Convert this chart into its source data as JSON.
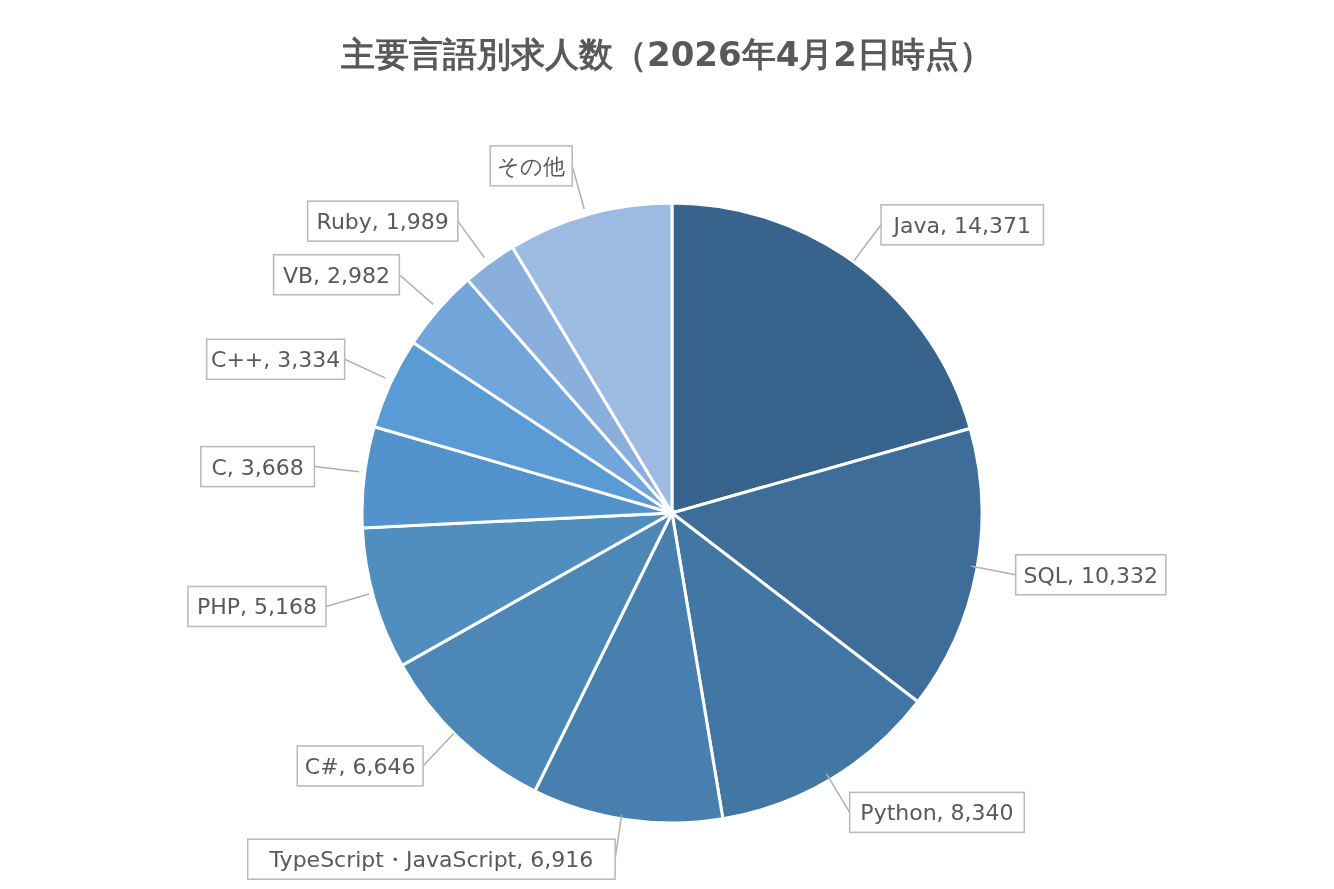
{
  "chart_data": {
    "type": "pie",
    "title": "主要言語別求人数（2026年4月2日時点）",
    "categories": [
      "Java",
      "SQL",
      "Python",
      "TypeScript・JavaScript",
      "C#",
      "PHP",
      "C",
      "C++",
      "VB",
      "Ruby",
      "その他"
    ],
    "values": [
      14371,
      10332,
      8340,
      6916,
      6646,
      5168,
      3668,
      3334,
      2982,
      1989,
      6000
    ],
    "value_labels": [
      "14,371",
      "10,332",
      "8,340",
      "6,916",
      "6,646",
      "5,168",
      "3,668",
      "3,334",
      "2,982",
      "1,989",
      null
    ],
    "colors": [
      "#38638c",
      "#3d6d98",
      "#4276a3",
      "#4780ae",
      "#4c87b6",
      "#508ec0",
      "#5393cb",
      "#5b9bd5",
      "#72a6da",
      "#8aafdd",
      "#9dbbe1"
    ],
    "legend": false
  }
}
